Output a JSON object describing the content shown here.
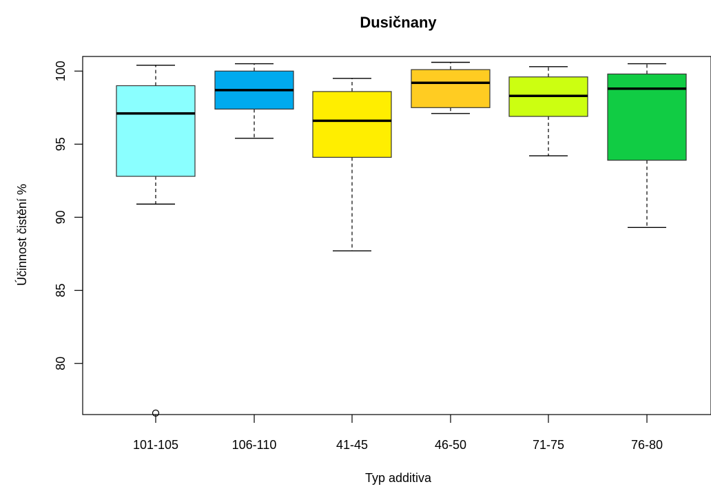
{
  "chart_data": {
    "type": "box",
    "title": "Dusičnany",
    "xlabel": "Typ additiva",
    "ylabel": "Účinnost čistění %",
    "ylim": [
      76.5,
      101.0
    ],
    "yticks": [
      80,
      85,
      90,
      95,
      100
    ],
    "grid": false,
    "categories": [
      "101-105",
      "106-110",
      "41-45",
      "46-50",
      "71-75",
      "76-80"
    ],
    "boxes": [
      {
        "category": "101-105",
        "whisker_low": 90.9,
        "q1": 92.8,
        "median": 97.1,
        "q3": 99.0,
        "whisker_high": 100.4,
        "outliers": [
          76.6
        ],
        "color": "#8affff"
      },
      {
        "category": "106-110",
        "whisker_low": 95.4,
        "q1": 97.4,
        "median": 98.7,
        "q3": 100.0,
        "whisker_high": 100.5,
        "outliers": [],
        "color": "#00aaee"
      },
      {
        "category": "41-45",
        "whisker_low": 87.7,
        "q1": 94.1,
        "median": 96.6,
        "q3": 98.6,
        "whisker_high": 99.5,
        "outliers": [],
        "color": "#ffee00"
      },
      {
        "category": "46-50",
        "whisker_low": 97.1,
        "q1": 97.5,
        "median": 99.2,
        "q3": 100.1,
        "whisker_high": 100.6,
        "outliers": [],
        "color": "#ffcc22"
      },
      {
        "category": "71-75",
        "whisker_low": 94.2,
        "q1": 96.9,
        "median": 98.3,
        "q3": 99.6,
        "whisker_high": 100.3,
        "outliers": [],
        "color": "#ccff11"
      },
      {
        "category": "76-80",
        "whisker_low": 89.3,
        "q1": 93.9,
        "median": 98.8,
        "q3": 99.8,
        "whisker_high": 100.5,
        "outliers": [],
        "color": "#11cc44"
      }
    ]
  }
}
